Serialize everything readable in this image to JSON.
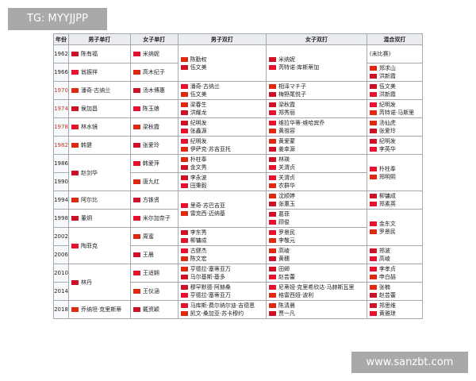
{
  "watermarks": [
    "TG: MYYJJPP",
    "www.sanzbt.com"
  ],
  "table": {
    "header": [
      "年份",
      "男子单打",
      "女子单打",
      "男子双打",
      "女子双打",
      "混合双打"
    ],
    "rows": [
      [
        "1962",
        "陈有福",
        "米纳妮",
        [
          "陈勤权",
          "伍文美"
        ],
        [
          "米纳妮",
          "芮特诺·库斯蒂加"
        ],
        [
          "(未比赛)"
        ]
      ],
      [
        "1966",
        "翁振祥",
        "高木纪子",
        [
          "郑求山",
          "洪新霞"
        ]
      ],
      [
        "1970",
        "潘奇·古纳兰",
        "汤木博惠",
        [
          "潘奇·古纳兰",
          "伍文美"
        ],
        [
          "相泽マチ子",
          "梅野尾悦子"
        ],
        [
          "伍文美",
          "洪新霞"
        ]
      ],
      [
        "1974",
        "侯加昌",
        "陈玉娘",
        [
          "梁春生",
          "洪耀龙"
        ],
        [
          "梁秋霞",
          "郑秀丽"
        ],
        [
          "纪明发",
          "芮特诺·马斯里"
        ]
      ],
      [
        "1978",
        "林水镜",
        "梁秋霞",
        [
          "纪明发",
          "张鑫源"
        ],
        [
          "维拉华蒂·维哈宾乔",
          "黄祖容"
        ],
        [
          "汤仙虎",
          "张爱玲"
        ]
      ],
      [
        "1982",
        "韩健",
        "张爱玲",
        [
          "纪明发",
          "伊萨克·苏吉亚托"
        ],
        [
          "黄爱蒙",
          "姜幸源"
        ],
        [
          "纪明发",
          "李英华"
        ]
      ],
      [
        "1986",
        "赵剑华",
        "韩爱萍",
        [
          "朴柱奉",
          "金文秀"
        ],
        [
          "林瑛",
          "关渭贞"
        ],
        [
          "朴柱奉",
          "郑明熙"
        ]
      ],
      [
        "1990",
        "唐九红",
        [
          "李永波",
          "田秉毅"
        ],
        [
          "关渭贞",
          "农群华"
        ]
      ],
      [
        "1994",
        "阿尔比",
        "方铢贤",
        [
          "里奇·苏巴吉亚",
          "雷克西·迈纳基"
        ],
        [
          "沈顺婷",
          "张惠玉"
        ],
        [
          "柳镛成",
          "郑素英"
        ]
      ],
      [
        "1998",
        "董炯",
        "米尔加奈子",
        [
          "葛菲",
          "顾俊"
        ],
        [
          "金东文",
          "罗景民"
        ]
      ],
      [
        "2002",
        "陶菲克",
        "周蜜",
        [
          "李东秀",
          "柳镛成"
        ],
        [
          "罗景民",
          "李敬元"
        ]
      ],
      [
        "2006",
        "王晨",
        [
          "古健杰",
          "陈文宏"
        ],
        [
          "高崚",
          "黄穗"
        ],
        [
          "郑波",
          "高崚"
        ]
      ],
      [
        "2010",
        "林丹",
        "王适娴",
        [
          "亨德拉·塞蒂亚万",
          "马尔基斯·基多"
        ],
        [
          "田卿",
          "赵芸蕾"
        ],
        [
          "李孝贞",
          "申白喆"
        ]
      ],
      [
        "2014",
        "王仪涵",
        [
          "穆罕默德·阿赫桑",
          "亨德拉·塞蒂亚万"
        ],
        [
          "尼蒂娅·克里希欣达·马赫斯瓦里",
          "格雷西娅·波利"
        ],
        [
          "张楠",
          "赵芸蕾"
        ]
      ],
      [
        "2018",
        "乔纳坦·克里斯蒂",
        "戴资颖",
        [
          "马库斯·费尔纳尔迪·吉德恩",
          "凯文·桑加亚·苏卡穆约"
        ],
        [
          "陈清晨",
          "贾一凡"
        ],
        [
          "郑思维",
          "黄雅琼"
        ]
      ]
    ]
  }
}
